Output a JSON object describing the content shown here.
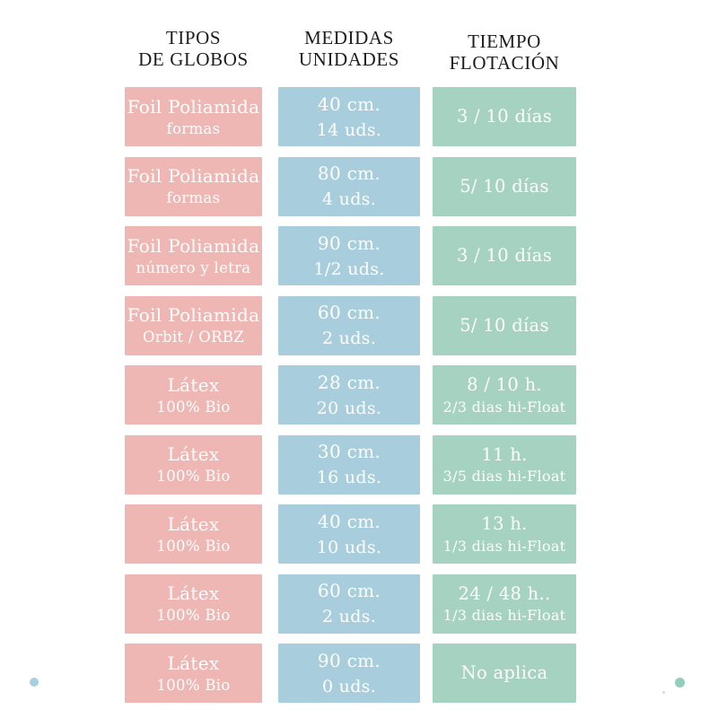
{
  "colors": {
    "background": "#ffffff",
    "pink_cell": "#efb7b4",
    "blue_cell": "#a8cedd",
    "green_cell": "#a6d2c2",
    "header_text": "#1d1d1d",
    "cell_text": "#ffffff",
    "dot_blue": "#a9cfdd",
    "dot_teal": "#93cdbd"
  },
  "headers": [
    {
      "line1": "TIPOS",
      "line2": "DE GLOBOS"
    },
    {
      "line1": "MEDIDAS",
      "line2": "UNIDADES"
    },
    {
      "line1": "TIEMPO",
      "line2": "FLOTACIÓN"
    }
  ],
  "rows": [
    {
      "tipo": {
        "line1": "Foil Poliamida",
        "line2": "formas"
      },
      "medida": {
        "line1": "40 cm.",
        "line2": "14 uds."
      },
      "tiempo": {
        "line1": "3 / 10 días",
        "line2": ""
      }
    },
    {
      "tipo": {
        "line1": "Foil Poliamida",
        "line2": "formas"
      },
      "medida": {
        "line1": "80 cm.",
        "line2": "4 uds."
      },
      "tiempo": {
        "line1": "5/ 10 días",
        "line2": ""
      }
    },
    {
      "tipo": {
        "line1": "Foil Poliamida",
        "line2": "número y letra"
      },
      "medida": {
        "line1": "90 cm.",
        "line2": "1/2 uds."
      },
      "tiempo": {
        "line1": "3 / 10 días",
        "line2": ""
      }
    },
    {
      "tipo": {
        "line1": "Foil Poliamida",
        "line2": "Orbit / ORBZ"
      },
      "medida": {
        "line1": "60 cm.",
        "line2": "2 uds."
      },
      "tiempo": {
        "line1": "5/ 10 días",
        "line2": ""
      }
    },
    {
      "tipo": {
        "line1": "Látex",
        "line2": "100% Bio"
      },
      "medida": {
        "line1": "28 cm.",
        "line2": "20 uds."
      },
      "tiempo": {
        "line1": "8 / 10 h.",
        "line2": "2/3 dias hi-Float"
      }
    },
    {
      "tipo": {
        "line1": "Látex",
        "line2": "100% Bio"
      },
      "medida": {
        "line1": "30 cm.",
        "line2": "16 uds."
      },
      "tiempo": {
        "line1": "11 h.",
        "line2": "3/5 dias hi-Float"
      }
    },
    {
      "tipo": {
        "line1": "Látex",
        "line2": "100% Bio"
      },
      "medida": {
        "line1": "40 cm.",
        "line2": "10 uds."
      },
      "tiempo": {
        "line1": "13 h.",
        "line2": "1/3 dias hi-Float"
      }
    },
    {
      "tipo": {
        "line1": "Látex",
        "line2": "100% Bio"
      },
      "medida": {
        "line1": "60 cm.",
        "line2": "2 uds."
      },
      "tiempo": {
        "line1": "24 / 48 h..",
        "line2": "1/3 dias hi-Float"
      }
    },
    {
      "tipo": {
        "line1": "Látex",
        "line2": "100% Bio"
      },
      "medida": {
        "line1": "90 cm.",
        "line2": "0 uds."
      },
      "tiempo": {
        "line1": "No aplica",
        "line2": ""
      }
    }
  ],
  "chart_data": {
    "type": "table",
    "title": "",
    "columns": [
      "TIPOS DE GLOBOS",
      "MEDIDAS UNIDADES",
      "TIEMPO FLOTACIÓN"
    ],
    "rows": [
      [
        "Foil Poliamida formas",
        "40 cm. 14 uds.",
        "3 / 10 días"
      ],
      [
        "Foil Poliamida formas",
        "80 cm. 4 uds.",
        "5/ 10 días"
      ],
      [
        "Foil Poliamida número y letra",
        "90 cm. 1/2 uds.",
        "3 / 10 días"
      ],
      [
        "Foil Poliamida Orbit / ORBZ",
        "60 cm. 2 uds.",
        "5/ 10 días"
      ],
      [
        "Látex 100% Bio",
        "28 cm. 20 uds.",
        "8 / 10 h. 2/3 dias hi-Float"
      ],
      [
        "Látex 100% Bio",
        "30 cm. 16 uds.",
        "11 h. 3/5 dias hi-Float"
      ],
      [
        "Látex 100% Bio",
        "40 cm. 10 uds.",
        "13 h. 1/3 dias hi-Float"
      ],
      [
        "Látex 100% Bio",
        "60 cm. 2 uds.",
        "24 / 48 h.. 1/3 dias hi-Float"
      ],
      [
        "Látex 100% Bio",
        "90 cm. 0 uds.",
        "No aplica"
      ]
    ]
  }
}
